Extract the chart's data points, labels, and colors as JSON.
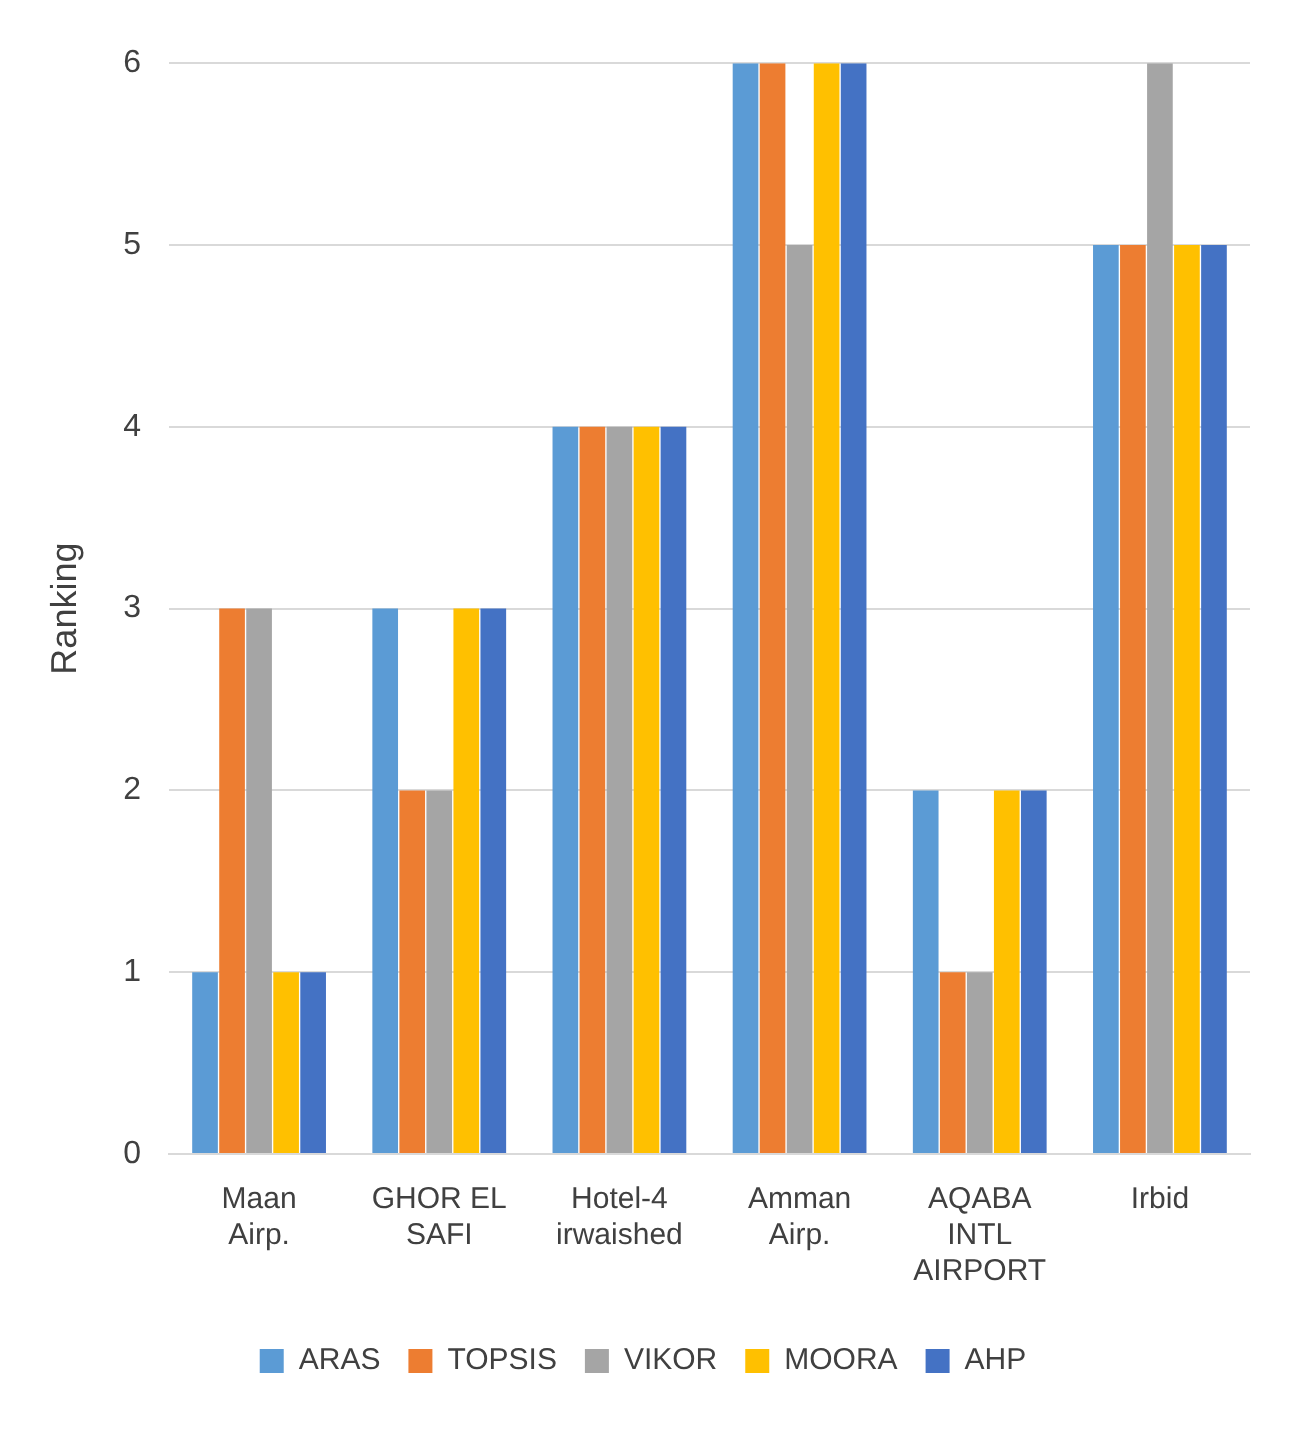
{
  "chart_data": {
    "type": "bar",
    "ylabel": "Ranking",
    "categories": [
      "Maan Airp.",
      "GHOR EL SAFI",
      "Hotel-4 irwaished",
      "Amman Airp.",
      "AQABA INTL AIRPORT",
      "Irbid"
    ],
    "series": [
      {
        "name": "ARAS",
        "color": "#5b9bd5",
        "values": [
          1,
          3,
          4,
          6,
          2,
          5
        ]
      },
      {
        "name": "TOPSIS",
        "color": "#ed7d31",
        "values": [
          3,
          2,
          4,
          6,
          1,
          5
        ]
      },
      {
        "name": "VIKOR",
        "color": "#a5a5a5",
        "values": [
          3,
          2,
          4,
          5,
          1,
          6
        ]
      },
      {
        "name": "MOORA",
        "color": "#ffc000",
        "values": [
          1,
          3,
          4,
          6,
          2,
          5
        ]
      },
      {
        "name": "AHP",
        "color": "#4472c4",
        "values": [
          1,
          3,
          4,
          6,
          2,
          5
        ]
      }
    ],
    "ylim": [
      0,
      6
    ],
    "yticks": [
      0,
      1,
      2,
      3,
      4,
      5,
      6
    ],
    "grid": "y",
    "legend": "bottom"
  }
}
